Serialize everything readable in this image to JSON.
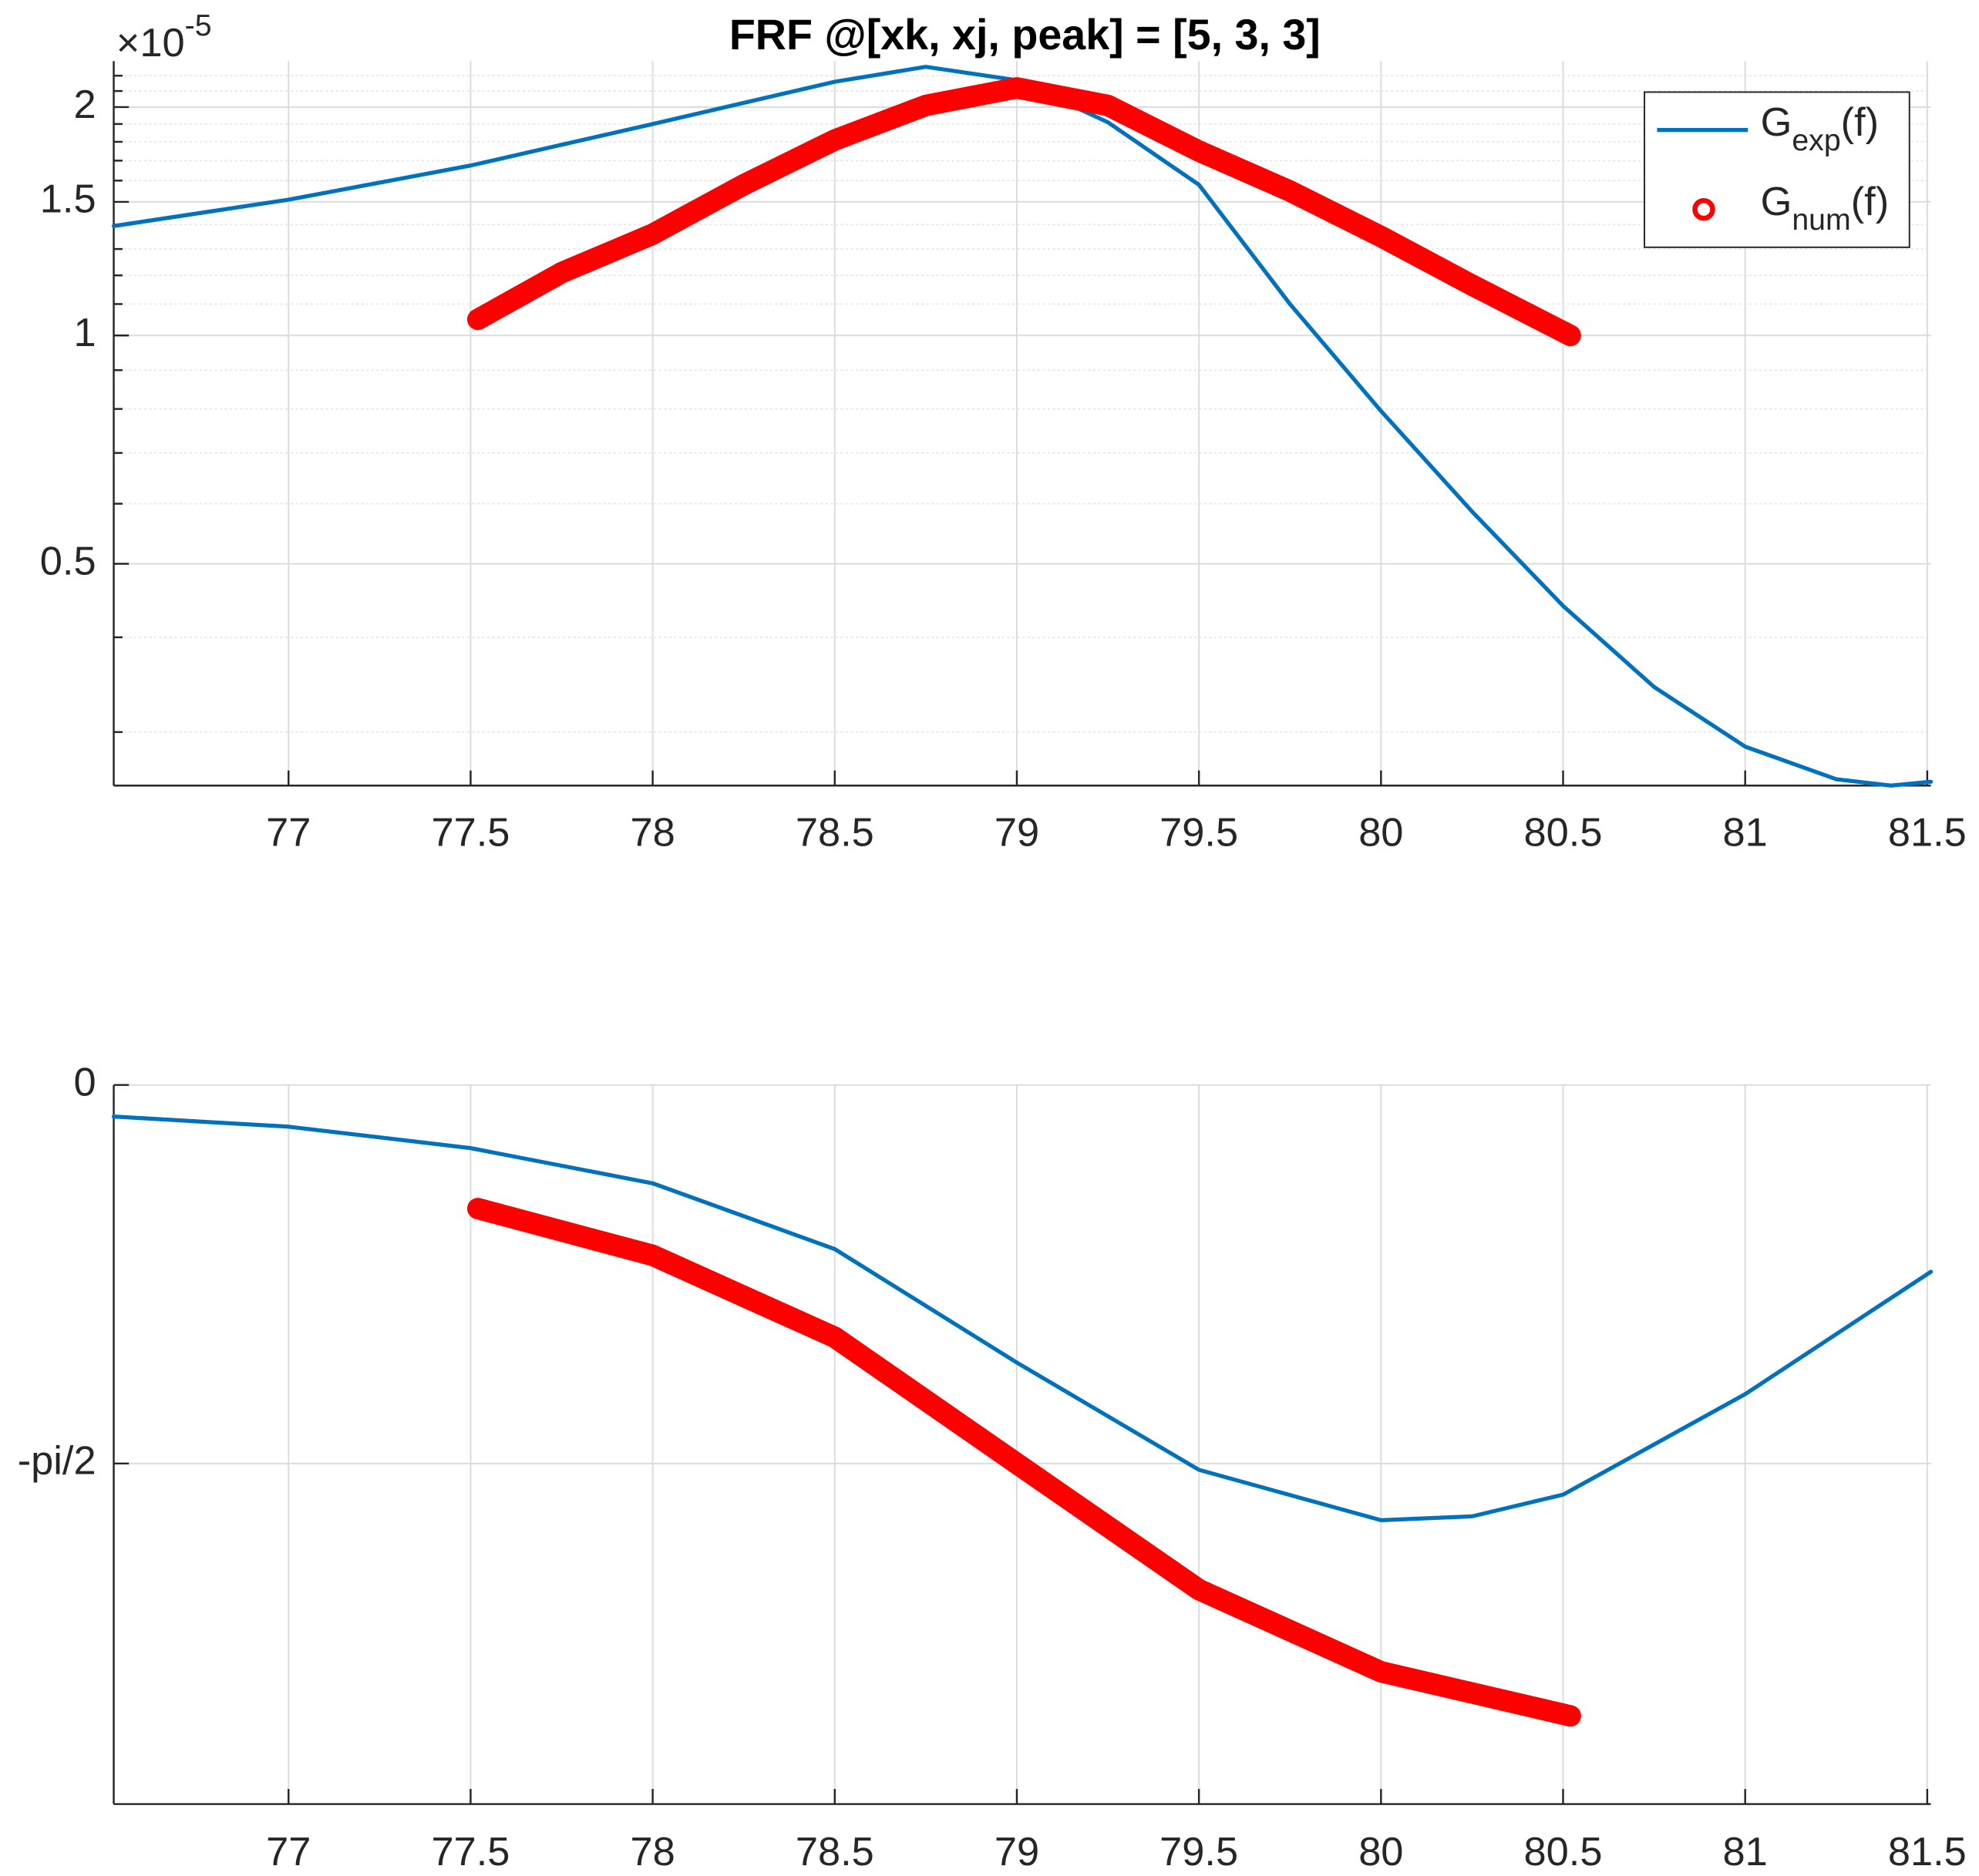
{
  "chart_data": [
    {
      "type": "line",
      "title": "FRF @[xk, xj, peak] = [5, 3, 3]",
      "y_multiplier": {
        "base": "×10",
        "exponent": "-5"
      },
      "xlim": [
        76.52,
        81.51
      ],
      "xticks": [
        77,
        77.5,
        78,
        78.5,
        79,
        79.5,
        80,
        80.5,
        81,
        81.5
      ],
      "ylim": [
        0.255,
        2.3
      ],
      "yticks": [
        0.5,
        1,
        1.5,
        2
      ],
      "minor_yticks": [
        0.3,
        0.4,
        0.6,
        0.7,
        0.8,
        0.9,
        1.1,
        1.2,
        1.3,
        1.4,
        1.6,
        1.7,
        1.8,
        1.9,
        2.1,
        2.2
      ],
      "y_scale": "log",
      "grid": true,
      "legend": "top-right",
      "series": [
        {
          "name": [
            "G",
            "exp",
            "(f)"
          ],
          "color": "#0072bd",
          "marker": "line",
          "x": [
            76.52,
            77,
            77.5,
            78,
            78.5,
            78.75,
            79,
            79.25,
            79.5,
            79.75,
            80,
            80.25,
            80.5,
            80.75,
            81,
            81.25,
            81.4,
            81.51
          ],
          "values": [
            1.394,
            1.51,
            1.675,
            1.9,
            2.16,
            2.26,
            2.17,
            1.91,
            1.58,
            1.1,
            0.795,
            0.586,
            0.44,
            0.344,
            0.287,
            0.26,
            0.255,
            0.258
          ]
        },
        {
          "name": [
            "G",
            "num",
            "(f)"
          ],
          "color": "#ff0000",
          "marker": "circle",
          "x": [
            77.52,
            77.75,
            78,
            78.25,
            78.5,
            78.75,
            79,
            79.25,
            79.5,
            79.75,
            80,
            80.25,
            80.52
          ],
          "values": [
            1.05,
            1.21,
            1.36,
            1.58,
            1.81,
            2.01,
            2.12,
            2.01,
            1.75,
            1.55,
            1.35,
            1.165,
            1.0
          ]
        }
      ]
    },
    {
      "type": "line",
      "xlim": [
        76.52,
        81.51
      ],
      "xticks": [
        77,
        77.5,
        78,
        78.5,
        79,
        79.5,
        80,
        80.5,
        81,
        81.5
      ],
      "ylim": [
        -2.984,
        0
      ],
      "yticks": [
        {
          "value": -1.5708,
          "label": "-pi/2"
        },
        0
      ],
      "grid": true,
      "series": [
        {
          "color": "#0072bd",
          "marker": "line",
          "x": [
            76.52,
            77,
            77.5,
            78,
            78.5,
            79,
            79.5,
            80,
            80.25,
            80.5,
            81,
            81.51
          ],
          "values": [
            -0.131,
            -0.173,
            -0.262,
            -0.408,
            -0.681,
            -1.152,
            -1.597,
            -1.806,
            -1.79,
            -1.7,
            -1.283,
            -0.775
          ]
        },
        {
          "color": "#ff0000",
          "marker": "circle",
          "x": [
            77.52,
            78,
            78.5,
            79,
            79.5,
            80,
            80.52
          ],
          "values": [
            -0.513,
            -0.707,
            -1.047,
            -1.571,
            -2.094,
            -2.435,
            -2.618
          ]
        }
      ]
    }
  ]
}
